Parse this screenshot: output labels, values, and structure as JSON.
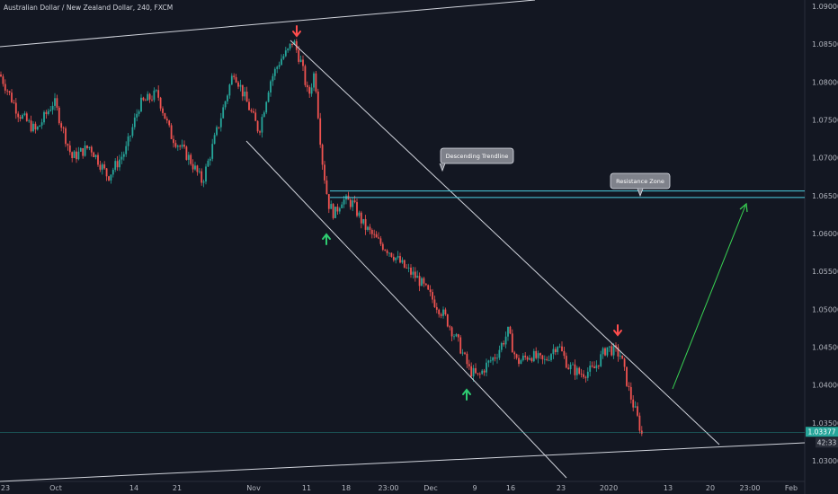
{
  "chart_data": {
    "type": "candlestick",
    "title": "Australian Dollar / New Zealand Dollar, 240, FXCM",
    "ylim": [
      1.0275,
      1.0915
    ],
    "y_ticks": [
      "1.09000",
      "1.08500",
      "1.08000",
      "1.07500",
      "1.07000",
      "1.06500",
      "1.06000",
      "1.05500",
      "1.05000",
      "1.04500",
      "1.04000",
      "1.03500",
      "1.03000"
    ],
    "x_ticks": [
      "23",
      "Oct",
      "14",
      "21",
      "Nov",
      "11",
      "18",
      "23:00",
      "Dec",
      "9",
      "16",
      "23",
      "2020",
      "13",
      "20",
      "23:00",
      "Feb"
    ],
    "price_path": [
      [
        0,
        1.081
      ],
      [
        20,
        1.076
      ],
      [
        40,
        1.0735
      ],
      [
        60,
        1.0775
      ],
      [
        80,
        1.07
      ],
      [
        100,
        1.0715
      ],
      [
        120,
        1.0675
      ],
      [
        140,
        1.071
      ],
      [
        155,
        1.077
      ],
      [
        175,
        1.0785
      ],
      [
        190,
        1.073
      ],
      [
        210,
        1.07
      ],
      [
        225,
        1.0668
      ],
      [
        240,
        1.073
      ],
      [
        260,
        1.0815
      ],
      [
        272,
        1.078
      ],
      [
        288,
        1.0735
      ],
      [
        300,
        1.08
      ],
      [
        312,
        1.083
      ],
      [
        320,
        1.084
      ],
      [
        326,
        1.0855
      ],
      [
        335,
        1.0825
      ],
      [
        343,
        1.078
      ],
      [
        350,
        1.0815
      ],
      [
        353,
        1.077
      ],
      [
        358,
        1.07
      ],
      [
        365,
        1.064
      ],
      [
        372,
        1.0625
      ],
      [
        380,
        1.0645
      ],
      [
        392,
        1.064
      ],
      [
        405,
        1.061
      ],
      [
        420,
        1.059
      ],
      [
        435,
        1.0575
      ],
      [
        450,
        1.0555
      ],
      [
        465,
        1.054
      ],
      [
        480,
        1.0515
      ],
      [
        495,
        1.049
      ],
      [
        510,
        1.0455
      ],
      [
        522,
        1.042
      ],
      [
        532,
        1.041
      ],
      [
        540,
        1.0425
      ],
      [
        552,
        1.044
      ],
      [
        565,
        1.047
      ],
      [
        575,
        1.043
      ],
      [
        590,
        1.044
      ],
      [
        605,
        1.043
      ],
      [
        620,
        1.0455
      ],
      [
        632,
        1.0425
      ],
      [
        645,
        1.0415
      ],
      [
        660,
        1.042
      ],
      [
        675,
        1.045
      ],
      [
        690,
        1.044
      ],
      [
        700,
        1.039
      ],
      [
        708,
        1.036
      ],
      [
        715,
        1.033
      ]
    ],
    "last_price": "1.03377",
    "countdown": "42:33",
    "resistance_zone": [
      1.065,
      1.0655
    ],
    "annotations": {
      "descending_trendline": "Descending Trendline",
      "resistance_zone": "Resistance Zone"
    },
    "markers": {
      "sell_arrows": 2,
      "buy_arrows": 2,
      "projection_arrow_target": 1.064
    },
    "colors": {
      "background": "#131722",
      "bull": "#26a69a",
      "bear": "#ef5350",
      "lines": "#d1d4dc",
      "zone": "#4dd0e1",
      "buy_marker": "#2ecc71",
      "sell_marker": "#ff4d4d",
      "projection": "#39d353",
      "price_tag": "#26a69a"
    }
  }
}
